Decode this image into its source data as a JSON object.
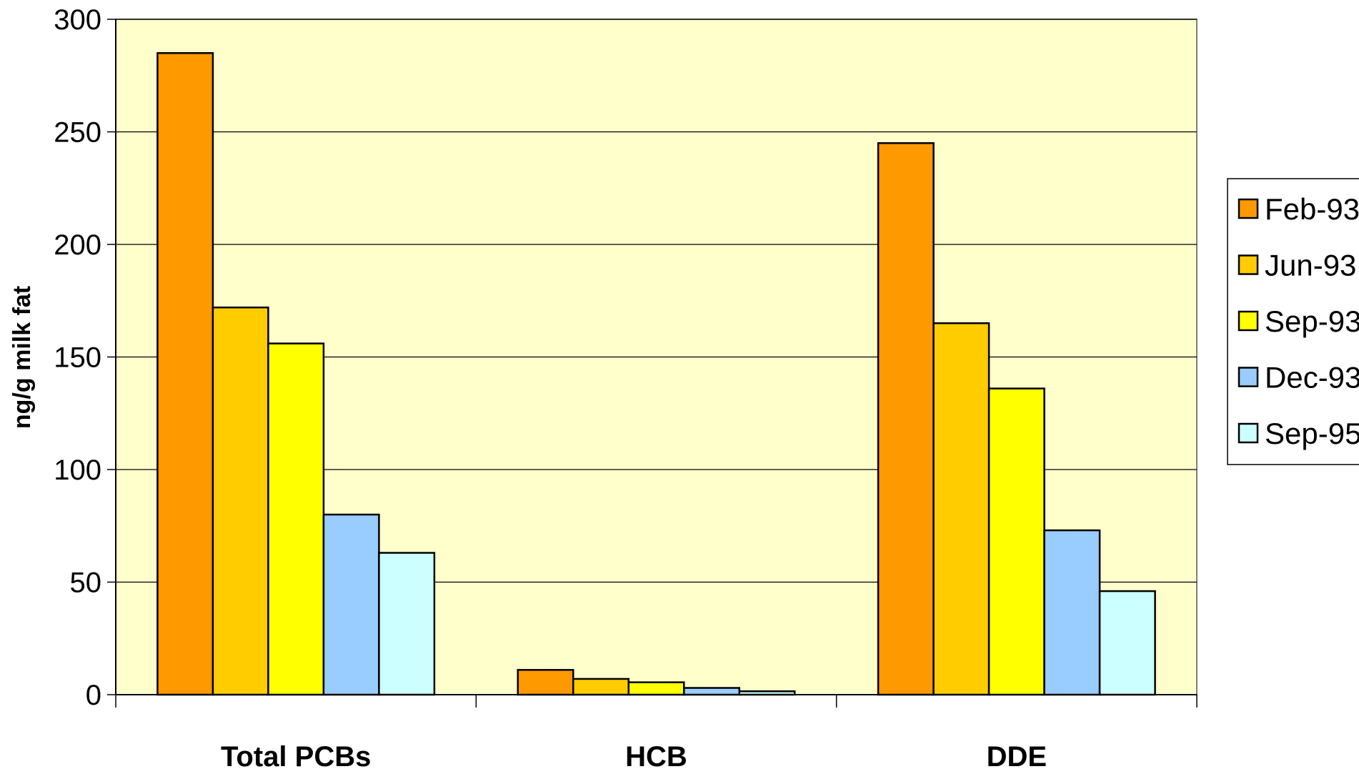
{
  "chart_data": {
    "type": "bar",
    "title": "",
    "xlabel": "",
    "ylabel": "ng/g milk fat",
    "ylim": [
      0,
      300
    ],
    "yticks": [
      0,
      50,
      100,
      150,
      200,
      250,
      300
    ],
    "categories": [
      "Total PCBs",
      "HCB",
      "DDE"
    ],
    "series": [
      {
        "name": "Feb-93",
        "color": "#FF9900",
        "values": [
          285,
          11,
          245
        ]
      },
      {
        "name": "Jun-93",
        "color": "#FFCC00",
        "values": [
          172,
          7,
          165
        ]
      },
      {
        "name": "Sep-93",
        "color": "#FFFF00",
        "values": [
          156,
          5.5,
          136
        ]
      },
      {
        "name": "Dec-93",
        "color": "#99CCFF",
        "values": [
          80,
          3,
          73
        ]
      },
      {
        "name": "Sep-95",
        "color": "#CCFFFF",
        "values": [
          63,
          1.5,
          46
        ]
      }
    ],
    "grid": true,
    "plot_background": "#FFFFCC",
    "legend_position": "right"
  }
}
